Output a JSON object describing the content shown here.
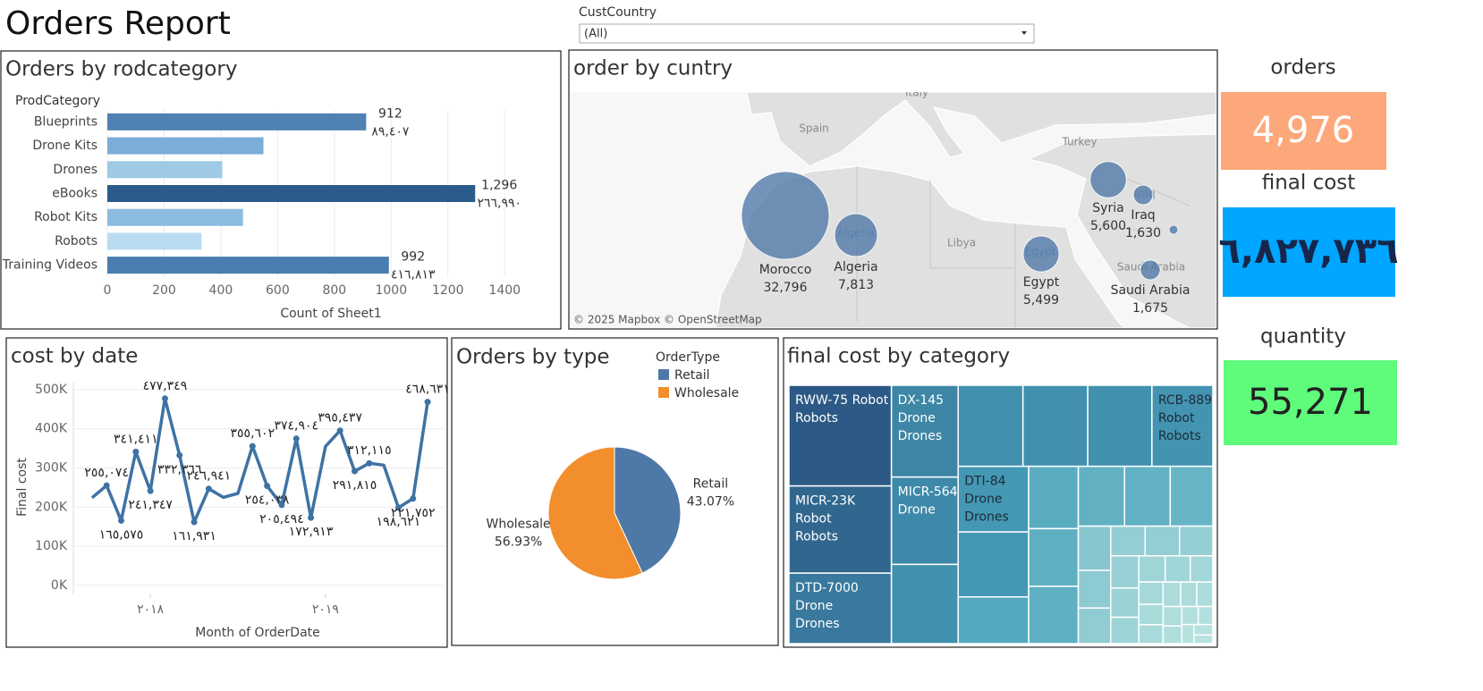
{
  "header": {
    "title": "Orders Report"
  },
  "filter": {
    "label": "CustCountry",
    "value": "(All)"
  },
  "chart_data": [
    {
      "type": "bar",
      "title": "Orders by rodcategory",
      "category_label": "ProdCategory",
      "categories": [
        "Blueprints",
        "Drone Kits",
        "Drones",
        "eBooks",
        "Robot Kits",
        "Robots",
        "Training Videos"
      ],
      "values": [
        912,
        550,
        405,
        1296,
        478,
        332,
        992
      ],
      "value_labels": [
        "912",
        null,
        null,
        "1,296",
        null,
        null,
        "992"
      ],
      "secondary_values": [
        89407,
        null,
        null,
        266990,
        null,
        null,
        416813
      ],
      "secondary_value_labels": [
        "٨٩,٤٠٧",
        null,
        null,
        "٢٦٦,٩٩٠",
        null,
        null,
        "٤١٦,٨١٣"
      ],
      "colors": [
        "#4f81b3",
        "#7badd7",
        "#9fcae6",
        "#2b5b8a",
        "#8cbbe0",
        "#badcf3",
        "#4a7db0"
      ],
      "xlim": [
        0,
        1560
      ],
      "xticks": [
        0,
        200,
        400,
        600,
        800,
        1000,
        1200,
        1400
      ],
      "xlabel": "Count of Sheet1",
      "grid": true
    },
    {
      "type": "bubble_map",
      "title": "order by cuntry",
      "categories": [
        "Morocco",
        "Algeria",
        "Egypt",
        "Syria",
        "Iraq",
        "Saudi Arabia",
        null
      ],
      "values": [
        32796,
        7813,
        5499,
        5600,
        1630,
        1675,
        340
      ],
      "value_labels": [
        "32,796",
        "7,813",
        "5,499",
        "5,600",
        "1,630",
        "1,675",
        null
      ],
      "color": "#4e79a7",
      "basemap_labels": [
        "Spain",
        "Italy",
        "Turkey",
        "Libya",
        "Algeria",
        "Egypt",
        "Iraq",
        "Saudi Arabia"
      ],
      "attribution": "© 2025 Mapbox © OpenStreetMap"
    },
    {
      "type": "line",
      "title": "cost by date",
      "x": [
        2017.6667,
        2017.75,
        2017.8333,
        2017.9167,
        2018,
        2018.0833,
        2018.1667,
        2018.25,
        2018.3333,
        2018.4167,
        2018.5,
        2018.5833,
        2018.6667,
        2018.75,
        2018.8333,
        2018.9167,
        2019,
        2019.0833,
        2019.1667,
        2019.25,
        2019.3333,
        2019.4167,
        2019.5,
        2019.5833
      ],
      "values": [
        224000,
        255074,
        165575,
        341411,
        241347,
        477349,
        332366,
        161931,
        246941,
        225000,
        235000,
        355602,
        254038,
        205494,
        374904,
        172913,
        355000,
        395437,
        291815,
        312115,
        307000,
        198621,
        221752,
        468631
      ],
      "value_labels": [
        null,
        "٢٥٥,٠٧٤",
        "١٦٥,٥٧٥",
        "٣٤١,٤١١",
        "٢٤١,٣٤٧",
        "٤٧٧,٣٤٩",
        "٣٣٢,٣٦٦",
        "١٦١,٩٣١",
        "٢٤٦,٩٤١",
        null,
        null,
        "٣٥٥,٦٠٢",
        "٢٥٤,٠٣٨",
        "٢٠٥,٤٩٤",
        "٣٧٤,٩٠٤",
        "١٧٢,٩١٣",
        null,
        "٣٩٥,٤٣٧",
        "٢٩١,٨١٥",
        "٣١٢,١١٥",
        null,
        "١٩٨,٦٢١",
        "٢٢١,٧٥٢",
        "٤٦٨,٦٣١"
      ],
      "color": "#3f72a4",
      "xlim": [
        2017.56,
        2019.68
      ],
      "xticks": [
        {
          "value": 2018,
          "label": "٢٠١٨"
        },
        {
          "value": 2019,
          "label": "٢٠١٩"
        }
      ],
      "ylim": [
        -23000,
        518000
      ],
      "yticks": [
        {
          "value": 0,
          "label": "0K"
        },
        {
          "value": 100000,
          "label": "100K"
        },
        {
          "value": 200000,
          "label": "200K"
        },
        {
          "value": 300000,
          "label": "300K"
        },
        {
          "value": 400000,
          "label": "400K"
        },
        {
          "value": 500000,
          "label": "500K"
        }
      ],
      "xlabel": "Month of OrderDate",
      "ylabel": "Final cost",
      "grid": true
    },
    {
      "type": "pie",
      "title": "Orders by type",
      "legend_title": "OrderType",
      "categories": [
        "Retail",
        "Wholesale"
      ],
      "values": [
        43.07,
        56.93
      ],
      "value_labels": [
        "43.07%",
        "56.93%"
      ],
      "colors": [
        "#4e79a7",
        "#f28e2b"
      ]
    },
    {
      "type": "treemap",
      "title": "final cost by category",
      "categories": [
        "RWW-75 Robot",
        "MICR-23K Robot",
        "DTD-7000 Drone",
        "DX-145 Drone",
        "MICR-564K Drone",
        null,
        null,
        null,
        null,
        "RCB-889 Robot",
        "DTI-84 Drone",
        null,
        null,
        null,
        null,
        null,
        null,
        null,
        null,
        null,
        null,
        null,
        null,
        null,
        null,
        null,
        null,
        null,
        null,
        null,
        null,
        null,
        null,
        null,
        null,
        null,
        null,
        null,
        null,
        null,
        null,
        null,
        null,
        null
      ],
      "groups": [
        "Robots",
        "Robots",
        "Drones",
        "Drones",
        null,
        null,
        null,
        null,
        null,
        "Robots",
        "Drones",
        null,
        null,
        null,
        null,
        null,
        null,
        null,
        null,
        null,
        null,
        null,
        null,
        null,
        null,
        null,
        null,
        null,
        null,
        null,
        null,
        null,
        null,
        null,
        null,
        null,
        null,
        null,
        null,
        null,
        null,
        null,
        null,
        null
      ],
      "values": [
        627000,
        543000,
        439000,
        372000,
        354000,
        321000,
        319000,
        319000,
        316000,
        300000,
        281000,
        278000,
        200000,
        188000,
        174000,
        173000,
        168000,
        166000,
        155000,
        87000,
        74000,
        70000,
        62000,
        62000,
        60000,
        55000,
        50000,
        45000,
        42000,
        40000,
        36000,
        33000,
        30000,
        28000,
        26000,
        24000,
        24000,
        22000,
        20000,
        18000,
        16000,
        14000,
        12000,
        10000
      ],
      "color_range": [
        "#c6ebe4",
        "#48a2bb",
        "#2c5985"
      ]
    }
  ],
  "kpis": [
    {
      "title": "orders",
      "value": "4,976",
      "color": "#fca87a"
    },
    {
      "title": "final cost",
      "value": "٦,٨٢٧,٧٣٦",
      "color": "#00a6ff"
    },
    {
      "title": "quantity",
      "value": "55,271",
      "color": "#5ffb7b"
    }
  ]
}
